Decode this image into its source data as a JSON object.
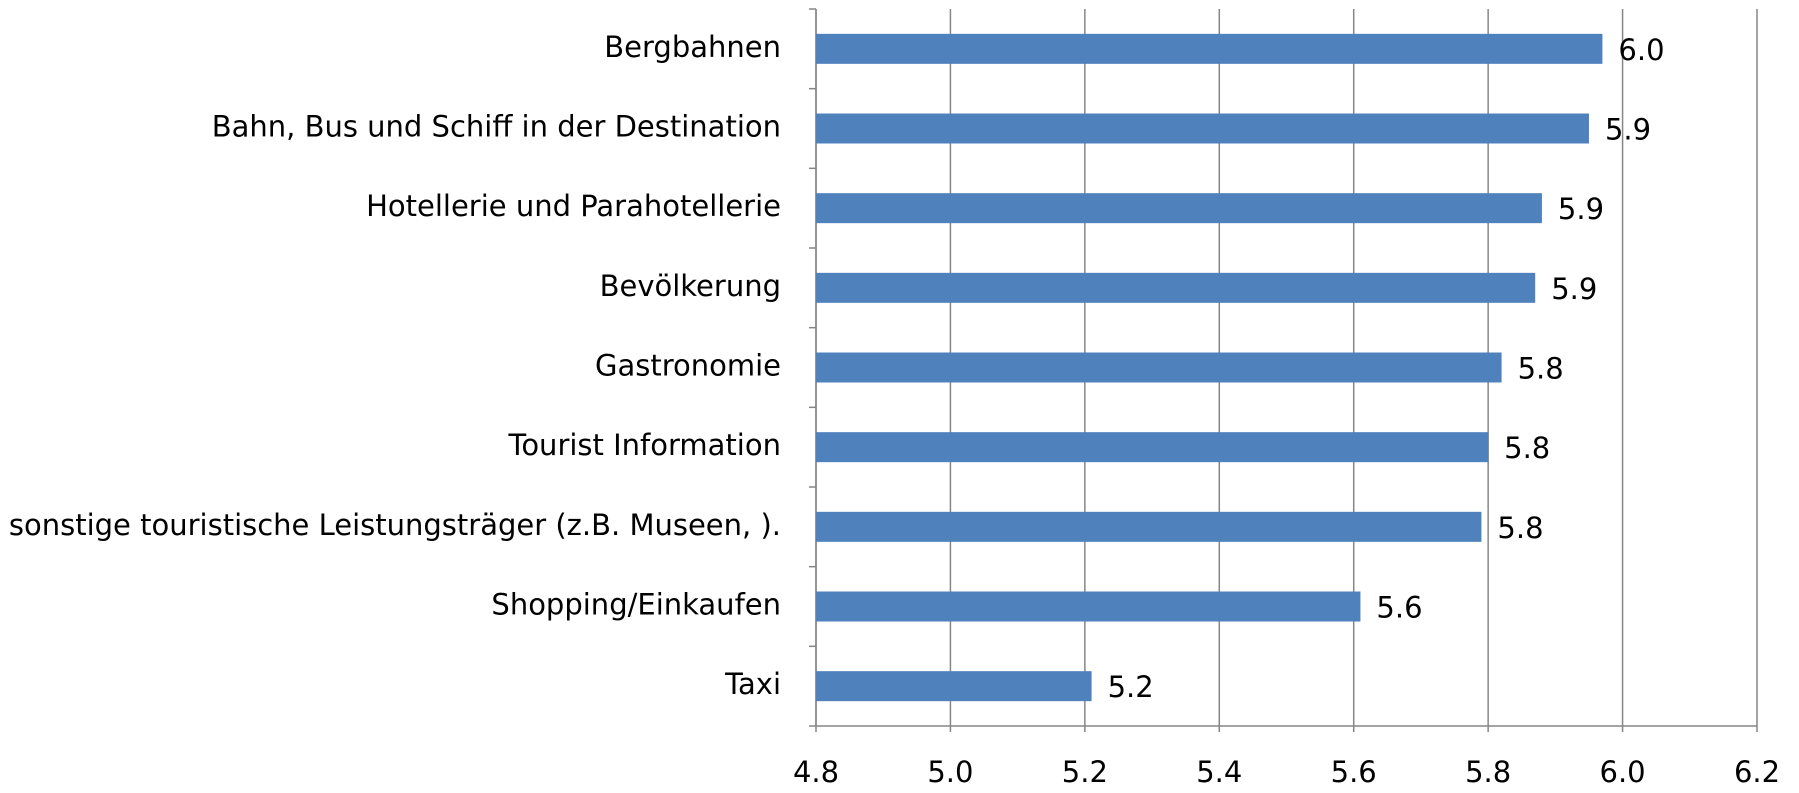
{
  "chart_data": {
    "type": "bar",
    "orientation": "horizontal",
    "categories": [
      "Bergbahnen",
      "Bahn, Bus und Schiff in der Destination",
      "Hotellerie und Parahotellerie",
      "Bevölkerung",
      "Gastronomie",
      "Tourist Information",
      "sonstige touristische Leistungsträger (z.B. Museen, ).",
      "Shopping/Einkaufen",
      "Taxi"
    ],
    "values": [
      5.97,
      5.95,
      5.88,
      5.87,
      5.82,
      5.8,
      5.79,
      5.61,
      5.21
    ],
    "value_labels": [
      "6.0",
      "5.9",
      "5.9",
      "5.9",
      "5.8",
      "5.8",
      "5.8",
      "5.6",
      "5.2"
    ],
    "color": "#4f81bd",
    "xlim": [
      4.8,
      6.2
    ],
    "xticks": [
      4.8,
      {
        "value": 5,
        "label": "5.0"
      },
      5.2,
      5.4,
      5.6,
      5.8,
      {
        "value": 6,
        "label": "6.0"
      },
      6.2
    ],
    "grid": true
  }
}
